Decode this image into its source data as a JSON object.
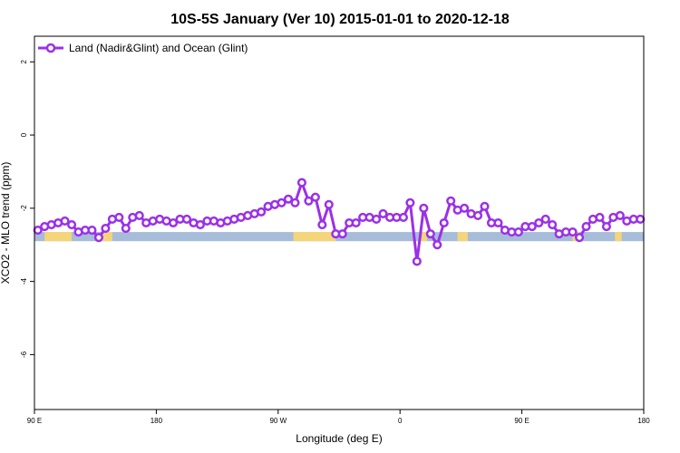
{
  "chart_data": {
    "type": "line",
    "title": "10S-5S January (Ver 10)   2015-01-01 to 2020-12-18",
    "xlabel": "Longitude (deg E)",
    "ylabel": "XCO2 - MLO trend (ppm)",
    "xlim": [
      90,
      450
    ],
    "ylim": [
      -7.5,
      2.7
    ],
    "x_ticks": [
      {
        "value": 90,
        "label": "90 E"
      },
      {
        "value": 162,
        "label": "180"
      },
      {
        "value": 234,
        "label": "90 W"
      },
      {
        "value": 306,
        "label": "0"
      },
      {
        "value": 378,
        "label": "90 E"
      },
      {
        "value": 450,
        "label": "180"
      }
    ],
    "y_ticks": [
      {
        "value": 2,
        "label": "2"
      },
      {
        "value": 0,
        "label": "0"
      },
      {
        "value": -2,
        "label": "-2"
      },
      {
        "value": -4,
        "label": "-4"
      },
      {
        "value": -6,
        "label": "-6"
      }
    ],
    "grid": false,
    "legend_position": "top-left",
    "series": [
      {
        "name": "Land (Nadir&Glint) and Ocean (Glint)",
        "color": "#9b30e8",
        "x": [
          92,
          96,
          100,
          104,
          108,
          112,
          116,
          120,
          124,
          128,
          132,
          136,
          140,
          144,
          148,
          152,
          156,
          160,
          164,
          168,
          172,
          176,
          180,
          184,
          188,
          192,
          196,
          200,
          204,
          208,
          212,
          216,
          220,
          224,
          228,
          232,
          236,
          240,
          244,
          248,
          252,
          256,
          260,
          264,
          268,
          272,
          276,
          280,
          284,
          288,
          292,
          296,
          300,
          304,
          308,
          312,
          316,
          320,
          324,
          328,
          332,
          336,
          340,
          344,
          348,
          352,
          356,
          360,
          364,
          368,
          372,
          376,
          380,
          384,
          388,
          392,
          396,
          400,
          404,
          408,
          412,
          416,
          420,
          424,
          428,
          432,
          436,
          440,
          444,
          448
        ],
        "y": [
          -2.6,
          -2.5,
          -2.45,
          -2.4,
          -2.35,
          -2.45,
          -2.65,
          -2.6,
          -2.6,
          -2.8,
          -2.55,
          -2.3,
          -2.25,
          -2.55,
          -2.25,
          -2.2,
          -2.4,
          -2.35,
          -2.3,
          -2.35,
          -2.4,
          -2.3,
          -2.3,
          -2.4,
          -2.45,
          -2.35,
          -2.35,
          -2.4,
          -2.35,
          -2.3,
          -2.25,
          -2.2,
          -2.15,
          -2.1,
          -1.95,
          -1.9,
          -1.85,
          -1.75,
          -1.85,
          -1.3,
          -1.8,
          -1.7,
          -2.45,
          -1.9,
          -2.7,
          -2.7,
          -2.4,
          -2.4,
          -2.25,
          -2.25,
          -2.3,
          -2.15,
          -2.25,
          -2.25,
          -2.25,
          -1.85,
          -3.45,
          -2.0,
          -2.7,
          -3.0,
          -2.4,
          -1.8,
          -2.05,
          -2.0,
          -2.15,
          -2.2,
          -1.95,
          -2.4,
          -2.4,
          -2.6,
          -2.65,
          -2.65,
          -2.5,
          -2.5,
          -2.4,
          -2.3,
          -2.45,
          -2.7,
          -2.65,
          -2.65,
          -2.8,
          -2.5,
          -2.3,
          -2.25,
          -2.5,
          -2.25,
          -2.2,
          -2.35,
          -2.3,
          -2.3
        ]
      }
    ],
    "land_ocean_band": {
      "y_range": [
        -2.9,
        -2.65
      ],
      "ocean_color": "#a6bcd8",
      "land_color": "#f5d57a",
      "land_x_ranges": [
        [
          96,
          112
        ],
        [
          130,
          136
        ],
        [
          243,
          268
        ],
        [
          318,
          322
        ],
        [
          340,
          346
        ],
        [
          408,
          412
        ],
        [
          433,
          437
        ]
      ]
    }
  }
}
